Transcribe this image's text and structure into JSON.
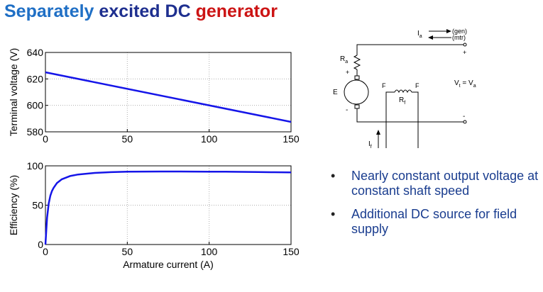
{
  "title": {
    "part1": "Separately",
    "part2": "excited",
    "part3": "DC",
    "part4": "generator"
  },
  "colors": {
    "title_part1": "#1f6fc5",
    "title_part2": "#1e2f8f",
    "title_part3": "#1e2f8f",
    "title_part4": "#cc1414",
    "series": "#1515e8",
    "bullet_text": "#1a3d8f"
  },
  "chart_data": [
    {
      "type": "line",
      "ylabel": "Terminal voltage (V)",
      "xlabel": "",
      "xlim": [
        0,
        150
      ],
      "ylim": [
        580,
        640
      ],
      "xticks": [
        "0",
        "50",
        "100",
        "150"
      ],
      "yticks": [
        "580",
        "600",
        "620",
        "640"
      ],
      "grid": true,
      "series": [
        {
          "x": [
            0,
            150
          ],
          "y": [
            625,
            587.5
          ]
        }
      ]
    },
    {
      "type": "line",
      "ylabel": "Efficiency (%)",
      "xlabel": "Armature current (A)",
      "xlim": [
        0,
        150
      ],
      "ylim": [
        0,
        100
      ],
      "xticks": [
        "0",
        "50",
        "100",
        "150"
      ],
      "yticks": [
        "0",
        "50",
        "100"
      ],
      "grid": true,
      "series": [
        {
          "x": [
            0,
            0.5,
            1,
            2,
            3,
            4,
            5,
            7,
            10,
            15,
            20,
            30,
            40,
            50,
            60,
            70,
            80,
            90,
            100,
            110,
            120,
            130,
            140,
            150
          ],
          "y": [
            0,
            18,
            34,
            52,
            62,
            68,
            72,
            78,
            83,
            87,
            89,
            91,
            92,
            92.5,
            92.7,
            92.8,
            92.8,
            92.7,
            92.6,
            92.5,
            92.3,
            92.1,
            91.9,
            91.7
          ]
        }
      ]
    }
  ],
  "circuit": {
    "Ia": "I",
    "Ia_sub": "a",
    "gen": "(gen)",
    "mtr": "(mtr)",
    "plus_top": "+",
    "minus_bottom": "-",
    "Ra": "R",
    "Ra_sub": "a",
    "E": "E",
    "e_plus": "+",
    "e_minus": "-",
    "F1": "F",
    "F2": "F",
    "Rf": "R",
    "Rf_sub": "f",
    "Vt": "V",
    "Vt_sub": "t",
    "Vt_eq": " = V",
    "Va_sub": "a",
    "If": "I",
    "If_sub": "f"
  },
  "bullets": [
    {
      "dot": "•",
      "text": "Nearly constant output voltage at constant shaft speed"
    },
    {
      "dot": "•",
      "text": "Additional DC source for field supply"
    }
  ]
}
